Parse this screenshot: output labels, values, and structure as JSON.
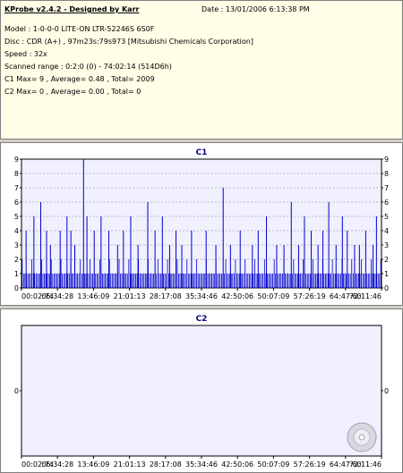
{
  "info": {
    "title": "KProbe v2.4.2 - Designed by Karr",
    "date": "Date : 13/01/2006 6:13:38 PM",
    "model": "Model : 1-0-0-0 LITE-ON LTR-52246S      6S0F",
    "disc": "Disc : CDR (A+) , 97m23s:79s973 [Mitsubishi Chemicals Corporation]",
    "speed": "Speed : 32x",
    "scanned": "Scanned range : 0:2:0 (0) - 74:02:14 (514D6h)",
    "c1": "C1 Max= 9 , Average= 0.48 , Total= 2009",
    "c2": "C2 Max= 0 , Average= 0.00 , Total= 0"
  },
  "colors": {
    "plot_bg": "#f0f0ff",
    "bar": "#0000cc",
    "grid": "#888888",
    "title": "#000080"
  },
  "chart_data": [
    {
      "type": "bar",
      "title": "C1",
      "ylim": [
        0,
        9
      ],
      "yticks": [
        0,
        1,
        2,
        3,
        4,
        5,
        6,
        7,
        8,
        9
      ],
      "xticks": [
        "00:02:74",
        "06:34:28",
        "13:46:09",
        "21:01:13",
        "28:17:08",
        "35:34:46",
        "42:50:06",
        "50:07:09",
        "57:26:19",
        "64:47:60",
        "72:11:46"
      ],
      "x_range_minutes": [
        0.05,
        74.04
      ],
      "grid": true,
      "baseline_level": 1,
      "peaks": [
        {
          "x": 1.0,
          "y": 4
        },
        {
          "x": 2.6,
          "y": 5
        },
        {
          "x": 4.0,
          "y": 6
        },
        {
          "x": 5.2,
          "y": 4
        },
        {
          "x": 6.0,
          "y": 3
        },
        {
          "x": 8.0,
          "y": 4
        },
        {
          "x": 9.4,
          "y": 5
        },
        {
          "x": 10.2,
          "y": 4
        },
        {
          "x": 11.0,
          "y": 3
        },
        {
          "x": 12.8,
          "y": 9
        },
        {
          "x": 13.5,
          "y": 5
        },
        {
          "x": 15.0,
          "y": 4
        },
        {
          "x": 16.4,
          "y": 5
        },
        {
          "x": 18.0,
          "y": 4
        },
        {
          "x": 19.8,
          "y": 3
        },
        {
          "x": 21.0,
          "y": 4
        },
        {
          "x": 22.5,
          "y": 5
        },
        {
          "x": 24.0,
          "y": 3
        },
        {
          "x": 26.0,
          "y": 6
        },
        {
          "x": 27.5,
          "y": 4
        },
        {
          "x": 29.0,
          "y": 5
        },
        {
          "x": 30.5,
          "y": 3
        },
        {
          "x": 31.8,
          "y": 4
        },
        {
          "x": 33.0,
          "y": 3
        },
        {
          "x": 35.0,
          "y": 4
        },
        {
          "x": 38.0,
          "y": 4
        },
        {
          "x": 40.0,
          "y": 3
        },
        {
          "x": 41.5,
          "y": 7
        },
        {
          "x": 43.0,
          "y": 3
        },
        {
          "x": 45.0,
          "y": 4
        },
        {
          "x": 47.5,
          "y": 3
        },
        {
          "x": 48.7,
          "y": 4
        },
        {
          "x": 50.4,
          "y": 5
        },
        {
          "x": 52.5,
          "y": 3
        },
        {
          "x": 54.0,
          "y": 3
        },
        {
          "x": 55.5,
          "y": 6
        },
        {
          "x": 57.0,
          "y": 3
        },
        {
          "x": 58.2,
          "y": 5
        },
        {
          "x": 59.6,
          "y": 4
        },
        {
          "x": 61.0,
          "y": 3
        },
        {
          "x": 62.0,
          "y": 4
        },
        {
          "x": 63.2,
          "y": 6
        },
        {
          "x": 64.7,
          "y": 3
        },
        {
          "x": 66.0,
          "y": 5
        },
        {
          "x": 67.0,
          "y": 4
        },
        {
          "x": 68.5,
          "y": 3
        },
        {
          "x": 69.5,
          "y": 3
        },
        {
          "x": 70.8,
          "y": 4
        },
        {
          "x": 72.3,
          "y": 3
        },
        {
          "x": 73.0,
          "y": 5
        }
      ]
    },
    {
      "type": "bar",
      "title": "C2",
      "ylim": [
        -1,
        1
      ],
      "yticks": [
        0
      ],
      "xticks": [
        "00:02:74",
        "06:34:28",
        "13:46:09",
        "21:01:13",
        "28:17:08",
        "35:34:46",
        "42:50:06",
        "50:07:09",
        "57:26:19",
        "64:47:60",
        "72:11:46"
      ],
      "x_range_minutes": [
        0.05,
        74.04
      ],
      "grid": false,
      "values": []
    }
  ]
}
